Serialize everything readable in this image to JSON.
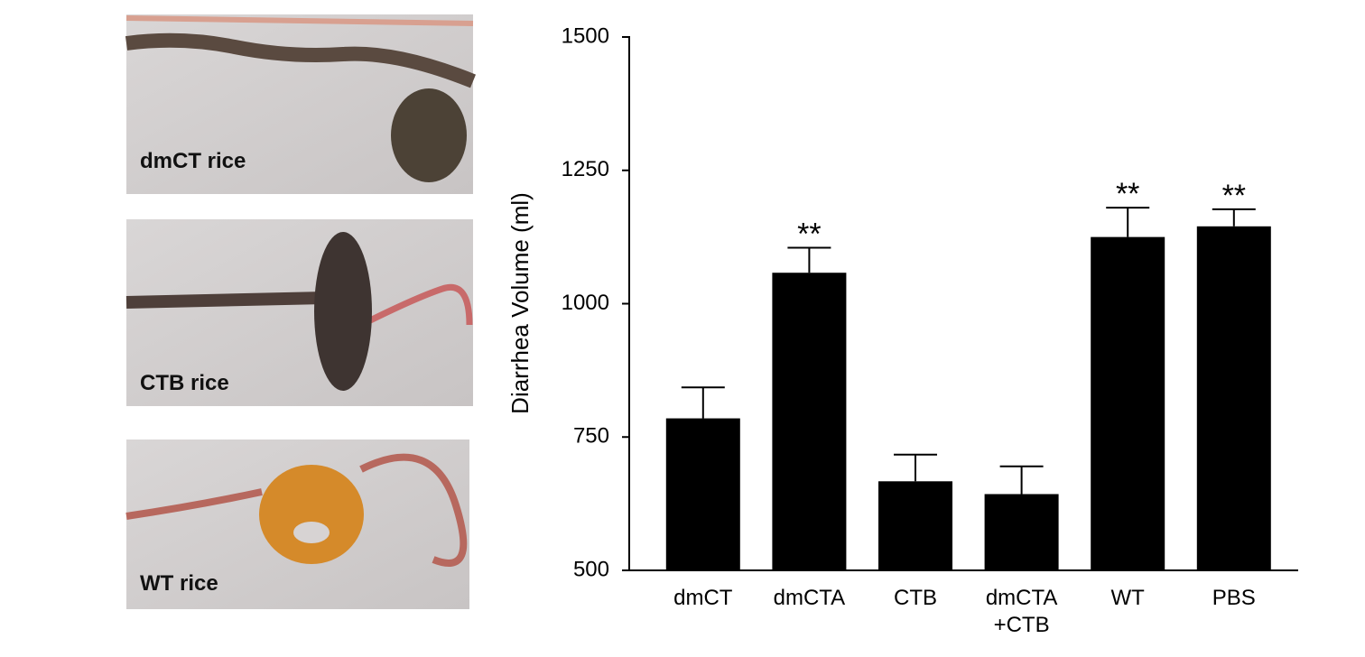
{
  "panels": [
    {
      "label": "dmCT rice"
    },
    {
      "label": "CTB rice"
    },
    {
      "label": "WT rice"
    }
  ],
  "chart_data": {
    "type": "bar",
    "y_label": "Diarrhea Volume (ml)",
    "categories": [
      "dmCT",
      "dmCTA",
      "CTB",
      "dmCTA\n+CTB",
      "WT",
      "PBS"
    ],
    "values": [
      785,
      1058,
      667,
      643,
      1125,
      1145
    ],
    "errors": [
      58,
      47,
      50,
      52,
      55,
      32
    ],
    "significance": [
      null,
      "**",
      null,
      null,
      "**",
      "**"
    ],
    "color": "#000000",
    "ylim": [
      500,
      1500
    ],
    "yticks": [
      500,
      750,
      1000,
      1250,
      1500
    ],
    "grid": false
  }
}
